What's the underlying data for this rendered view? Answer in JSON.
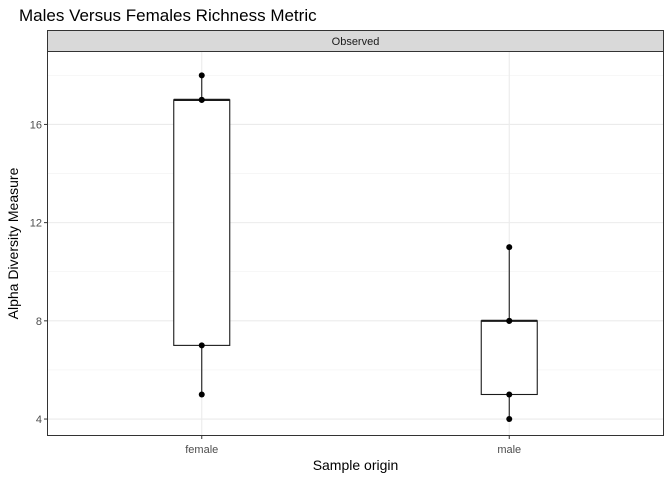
{
  "chart_data": {
    "type": "boxplot",
    "title": "Males Versus Females Richness Metric",
    "facet_label": "Observed",
    "xlabel": "Sample origin",
    "ylabel": "Alpha Diversity Measure",
    "ylim": [
      3.35,
      18.95
    ],
    "y_ticks": [
      4,
      8,
      12,
      16
    ],
    "y_tick_labels": [
      "4",
      "8",
      "12",
      "16"
    ],
    "grid": true,
    "categories": [
      "female",
      "male"
    ],
    "boxes": [
      {
        "category": "female",
        "min": 5,
        "q1": 7,
        "median": 17,
        "q3": 17,
        "max": 18
      },
      {
        "category": "male",
        "min": 4,
        "q1": 5,
        "median": 8,
        "q3": 8,
        "max": 11
      }
    ],
    "points": [
      {
        "category": "female",
        "values": [
          5,
          7,
          17,
          17,
          18
        ]
      },
      {
        "category": "male",
        "values": [
          4,
          5,
          8,
          8,
          11
        ]
      }
    ],
    "colors": {
      "box_fill": "#ffffff",
      "box_stroke": "#1a1a1a",
      "point": "#000000",
      "strip": "#d9d9d9"
    }
  }
}
